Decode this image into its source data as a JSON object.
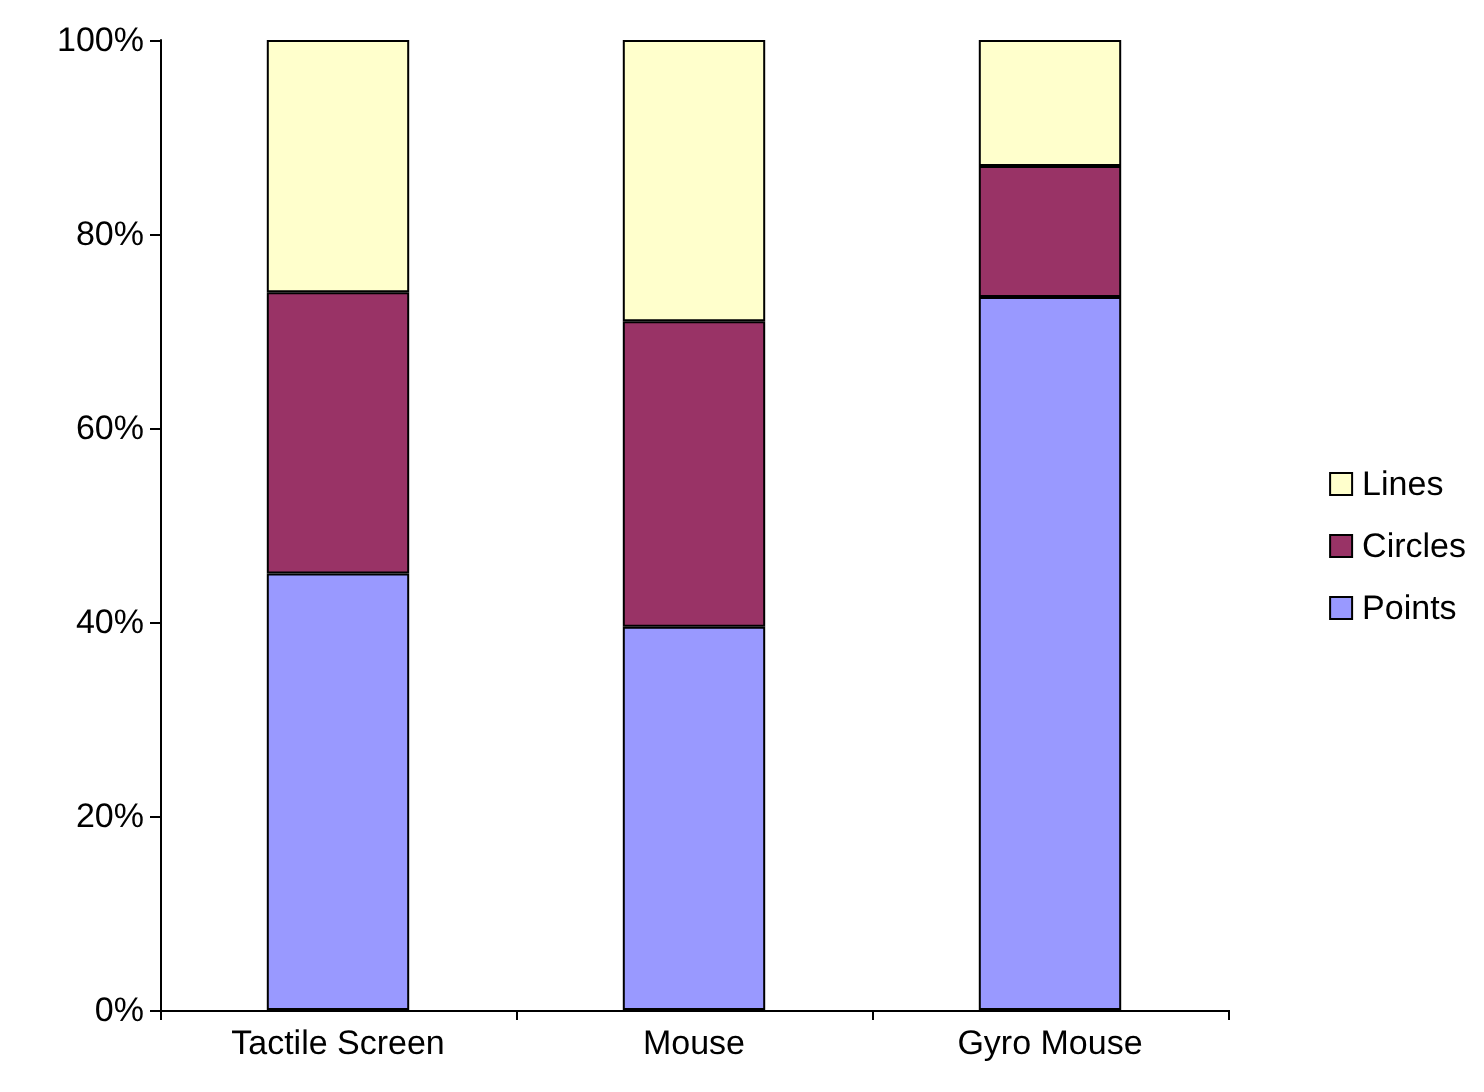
{
  "chart_data": {
    "type": "bar",
    "stacked": true,
    "categories": [
      "Tactile Screen",
      "Mouse",
      "Gyro Mouse"
    ],
    "series": [
      {
        "name": "Points",
        "color": "#9999ff",
        "values": [
          45,
          39.5,
          73.5
        ]
      },
      {
        "name": "Circles",
        "color": "#993366",
        "values": [
          29,
          31.5,
          13.5
        ]
      },
      {
        "name": "Lines",
        "color": "#ffffcc",
        "values": [
          26,
          29,
          13
        ]
      }
    ],
    "ylim": [
      0,
      100
    ],
    "yticks": [
      {
        "value": 0,
        "label": "0%"
      },
      {
        "value": 20,
        "label": "20%"
      },
      {
        "value": 40,
        "label": "40%"
      },
      {
        "value": 60,
        "label": "60%"
      },
      {
        "value": 80,
        "label": "80%"
      },
      {
        "value": 100,
        "label": "100%"
      }
    ],
    "grid": false,
    "legend": "right"
  }
}
